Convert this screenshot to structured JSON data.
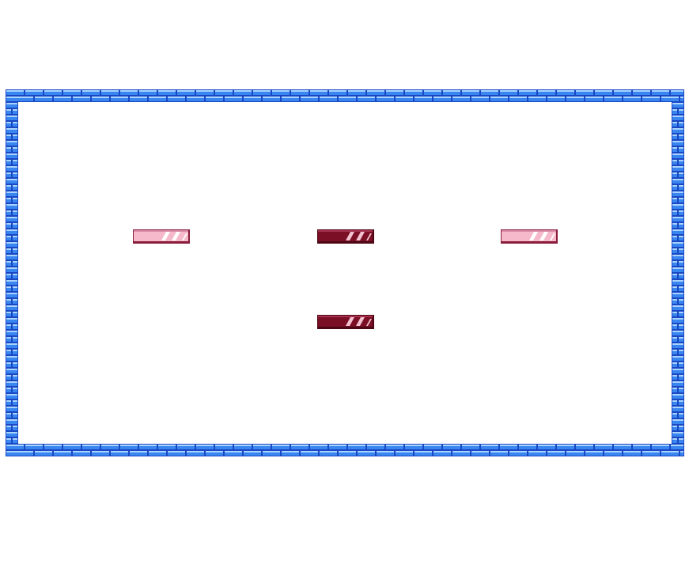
{
  "game": {
    "wall": {
      "name": "brick-wall",
      "colors": {
        "mortar": "#1a47c4",
        "brick": "#3a86f0",
        "highlight": "#a9d4ff",
        "inner": "#ffffff"
      }
    },
    "bricks": [
      {
        "id": "brick-left",
        "variant": "light",
        "row": 0,
        "col": 0
      },
      {
        "id": "brick-center-top",
        "variant": "dark",
        "row": 0,
        "col": 1
      },
      {
        "id": "brick-right",
        "variant": "light",
        "row": 0,
        "col": 2
      },
      {
        "id": "brick-center-bottom",
        "variant": "dark",
        "row": 1,
        "col": 1
      }
    ],
    "brick_variants": {
      "light": {
        "fill": "#f6b9cc",
        "stripe": "#ffffff",
        "edge": "#8a1c3a",
        "shade": "#d98aa6"
      },
      "dark": {
        "fill": "#7a0f26",
        "stripe": "#f4c3d2",
        "edge": "#4d0614",
        "shade": "#a8324f"
      }
    }
  }
}
